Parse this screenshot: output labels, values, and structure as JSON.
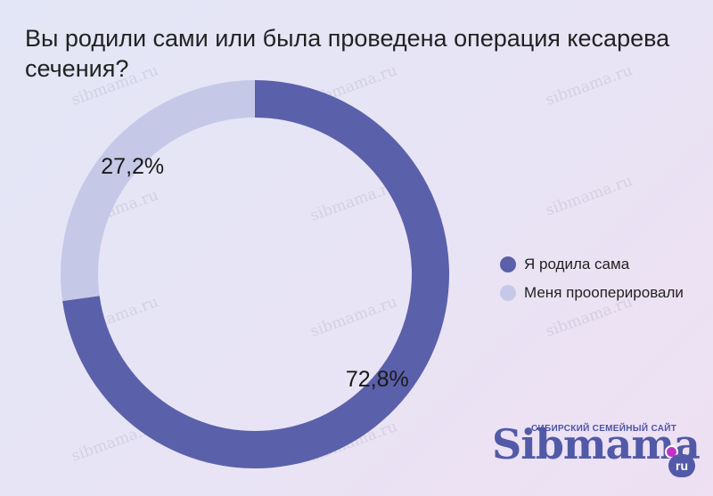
{
  "title": "Вы родили сами или была проведена операция кесарева сечения?",
  "chart_data": {
    "type": "pie",
    "variant": "donut",
    "categories": [
      "Я родила сама",
      "Меня прооперировали"
    ],
    "values": [
      72.8,
      27.2
    ],
    "labels": [
      "72,8%",
      "27,2%"
    ],
    "colors": [
      "#5b60aa",
      "#c5c9e7"
    ],
    "legend_position": "right"
  },
  "watermark": "sibmama.ru",
  "logo": {
    "tagline": "СИБИРСКИЙ СЕМЕЙНЫЙ САЙТ",
    "brand": "Sibmama",
    "tld": "ru"
  }
}
